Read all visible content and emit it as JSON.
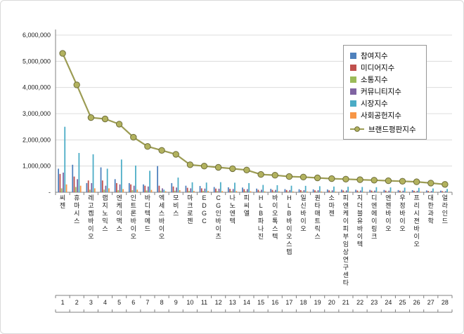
{
  "chart_data": {
    "type": "bar+line",
    "title": "",
    "xlabel": "",
    "ylabel": "",
    "ylim": [
      0,
      6000000
    ],
    "grid": true,
    "legend_position": "top-right",
    "y_ticks": [
      {
        "value": 0,
        "label": "-"
      },
      {
        "value": 1000000,
        "label": "1,000,000"
      },
      {
        "value": 2000000,
        "label": "2,000,000"
      },
      {
        "value": 3000000,
        "label": "3,000,000"
      },
      {
        "value": 4000000,
        "label": "4,000,000"
      },
      {
        "value": 5000000,
        "label": "5,000,000"
      },
      {
        "value": 6000000,
        "label": "6,000,000"
      }
    ],
    "categories": [
      "씨젠",
      "휴마시스",
      "레고켐바이오",
      "랩지노믹스",
      "엔케이맥스",
      "인트론바이오",
      "바디텍메드",
      "엑세스바이오",
      "모비스",
      "마크로젠",
      "EDGC",
      "CG인바이츠",
      "나노엔텍",
      "피씨엘",
      "HLB파나진",
      "바이오톡스텍",
      "HLB바이오스텝",
      "일신바이오",
      "퀀타매트릭스",
      "소마젠",
      "피엔케이피부임상연구센타",
      "지더블유바이텍",
      "디엔에이링크",
      "엔젠바이오",
      "우정바이오",
      "프리시젼바이오",
      "대한과학",
      "얼라인드"
    ],
    "rank_labels": [
      "1",
      "2",
      "3",
      "4",
      "5",
      "6",
      "7",
      "8",
      "9",
      "10",
      "11",
      "12",
      "13",
      "14",
      "15",
      "16",
      "17",
      "18",
      "19",
      "20",
      "21",
      "22",
      "23",
      "24",
      "25",
      "26",
      "27",
      "28"
    ],
    "series": [
      {
        "name": "참여지수",
        "color": "#4F81BD",
        "values": [
          900000,
          1050000,
          350000,
          950000,
          500000,
          350000,
          300000,
          1000000,
          350000,
          250000,
          240000,
          200000,
          190000,
          180000,
          140000,
          130000,
          120000,
          115000,
          110000,
          105000,
          100000,
          96000,
          92000,
          88000,
          84000,
          80000,
          70000,
          60000
        ]
      },
      {
        "name": "미디어지수",
        "color": "#C0504D",
        "values": [
          700000,
          600000,
          450000,
          450000,
          350000,
          300000,
          250000,
          250000,
          220000,
          170000,
          150000,
          140000,
          130000,
          120000,
          95000,
          90000,
          85000,
          80000,
          75000,
          72000,
          70000,
          67000,
          64000,
          62000,
          59000,
          56000,
          49000,
          42000
        ]
      },
      {
        "name": "소통지수",
        "color": "#9BBB59",
        "values": [
          150000,
          200000,
          100000,
          100000,
          80000,
          80000,
          70000,
          60000,
          60000,
          50000,
          50000,
          45000,
          45000,
          40000,
          35000,
          35000,
          30000,
          30000,
          28000,
          26000,
          25000,
          24000,
          23000,
          22000,
          21000,
          20000,
          18000,
          15000
        ]
      },
      {
        "name": "커뮤니티지수",
        "color": "#8064A2",
        "values": [
          750000,
          500000,
          350000,
          250000,
          300000,
          250000,
          220000,
          150000,
          180000,
          150000,
          140000,
          135000,
          125000,
          120000,
          95000,
          90000,
          85000,
          80000,
          78000,
          73000,
          70000,
          67000,
          64000,
          61000,
          59000,
          56000,
          49000,
          42000
        ]
      },
      {
        "name": "시장지수",
        "color": "#4BACC6",
        "values": [
          2500000,
          1500000,
          1450000,
          900000,
          1250000,
          1020000,
          820000,
          100000,
          560000,
          380000,
          370000,
          385000,
          365000,
          350000,
          280000,
          270000,
          250000,
          245000,
          231000,
          218000,
          210000,
          202000,
          194000,
          185000,
          176000,
          168000,
          146000,
          126000
        ]
      },
      {
        "name": "사회공헌지수",
        "color": "#F79646",
        "values": [
          300000,
          250000,
          150000,
          150000,
          120000,
          100000,
          90000,
          40000,
          80000,
          50000,
          50000,
          45000,
          45000,
          40000,
          35000,
          35000,
          30000,
          30000,
          28000,
          26000,
          25000,
          24000,
          23000,
          22000,
          21000,
          20000,
          18000,
          15000
        ]
      }
    ],
    "line_series": {
      "name": "브랜드평판지수",
      "color": "#9C9C54",
      "marker_fill": "#B2B25E",
      "marker_stroke": "#6E6E3A",
      "values": [
        5300000,
        4100000,
        2850000,
        2800000,
        2600000,
        2100000,
        1750000,
        1600000,
        1450000,
        1050000,
        1000000,
        950000,
        900000,
        850000,
        680000,
        650000,
        600000,
        580000,
        550000,
        520000,
        500000,
        480000,
        460000,
        440000,
        420000,
        400000,
        350000,
        300000
      ]
    }
  }
}
